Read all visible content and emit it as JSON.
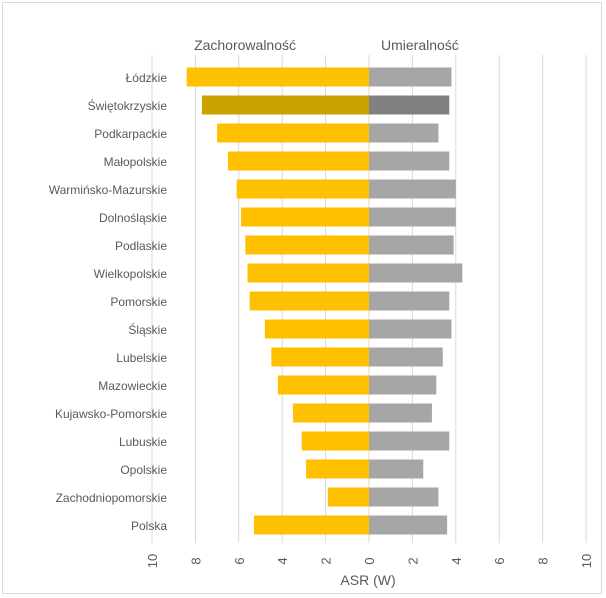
{
  "chart_data": {
    "type": "bar",
    "orientation": "horizontal-diverging",
    "xlabel": "ASR (W)",
    "grid": true,
    "xlim": [
      -10,
      10
    ],
    "ticks": [
      10,
      8,
      6,
      4,
      2,
      0,
      2,
      4,
      6,
      8,
      10
    ],
    "categories": [
      "Łódzkie",
      "Świętokrzyskie",
      "Podkarpackie",
      "Małopolskie",
      "Warmińsko-Mazurskie",
      "Dolnośląskie",
      "Podlaskie",
      "Wielkopolskie",
      "Pomorskie",
      "Śląskie",
      "Lubelskie",
      "Mazowieckie",
      "Kujawsko-Pomorskie",
      "Lubuskie",
      "Opolskie",
      "Zachodniopomorskie",
      "Polska"
    ],
    "series": [
      {
        "name": "Zachorowalność",
        "direction": "left",
        "color": "#ffc000",
        "highlight_color": "#c9a100",
        "values": [
          8.4,
          7.7,
          7.0,
          6.5,
          6.1,
          5.9,
          5.7,
          5.6,
          5.5,
          4.8,
          4.5,
          4.2,
          3.5,
          3.1,
          2.9,
          1.9,
          5.3
        ]
      },
      {
        "name": "Umieralność",
        "direction": "right",
        "color": "#a6a6a6",
        "highlight_color": "#808080",
        "values": [
          3.8,
          3.7,
          3.2,
          3.7,
          4.0,
          4.0,
          3.9,
          4.3,
          3.7,
          3.8,
          3.4,
          3.1,
          2.9,
          3.7,
          2.5,
          3.2,
          3.6
        ]
      }
    ],
    "highlight_category": "Świętokrzyskie"
  }
}
